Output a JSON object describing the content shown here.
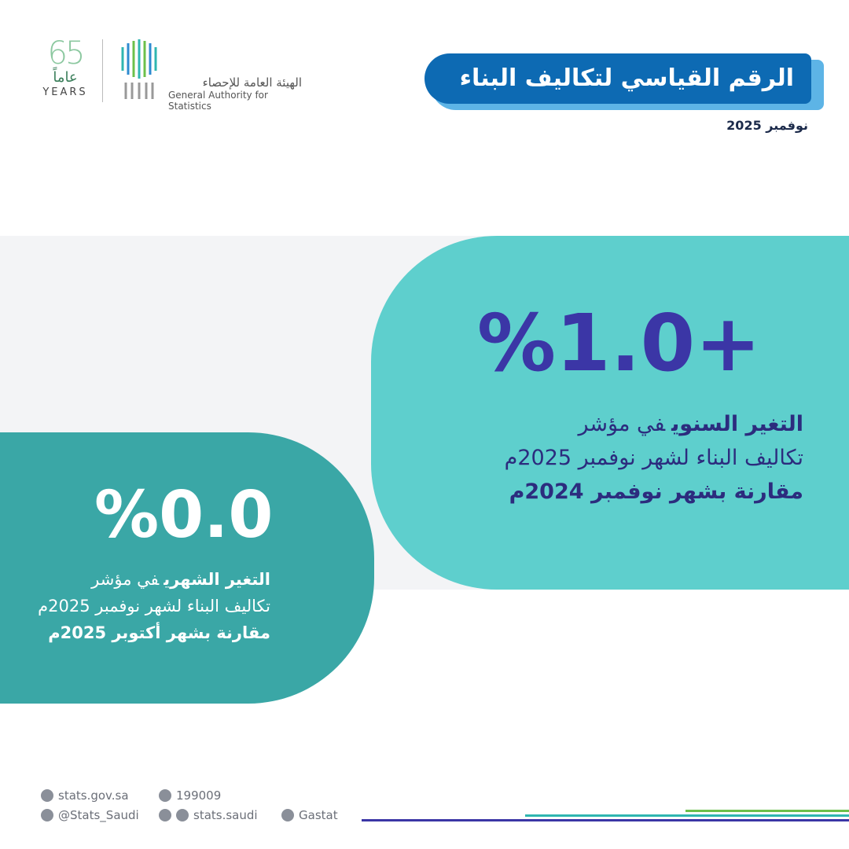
{
  "header": {
    "title": "الرقم القياسي لتكاليف البناء",
    "date": "نوفمبر 2025"
  },
  "logo": {
    "years_number": "65",
    "years_ar": "عاماً",
    "years_en": "YEARS",
    "org_ar": "الهيئة العامة للإحصاء",
    "org_en": "General Authority for Statistics"
  },
  "annual": {
    "value": "%1.0+",
    "line1_bold": "التغير السنوي",
    "line1_rest": "في مؤشر",
    "line2": "تكاليف البناء لشهر نوفمبر 2025م",
    "line3": "مقارنة بشهر نوفمبر 2024م"
  },
  "monthly": {
    "value": "%0.0",
    "line1_bold": "التغير الشهري",
    "line1_rest": "في مؤشر",
    "line2": "تكاليف البناء لشهر نوفمبر 2025م",
    "line3": "مقارنة بشهر أكتوبر 2025م"
  },
  "footer": {
    "website": "stats.gov.sa",
    "phone": "199009",
    "twitter": "@Stats_Saudi",
    "social": "stats.saudi",
    "linkedin": "Gastat"
  }
}
